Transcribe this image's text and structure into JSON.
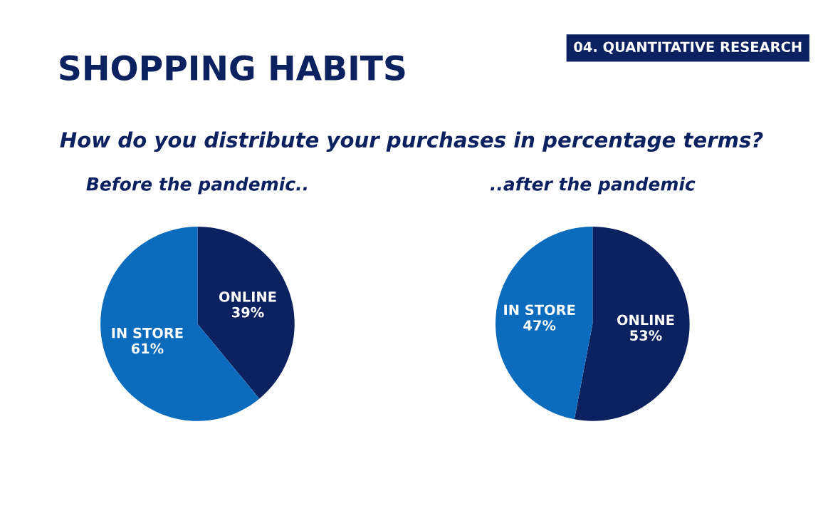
{
  "chart_data": [
    {
      "type": "pie",
      "title": "Before the pandemic..",
      "annotations": [
        "SHOPPING HABITS",
        "04. QUANTITATIVE RESEARCH",
        "How do you distribute your purchases in percentage terms?"
      ],
      "categories": [
        "ONLINE",
        "IN STORE"
      ],
      "values": [
        39,
        61
      ],
      "value_labels": [
        "39%",
        "61%"
      ],
      "colors": [
        "#0c2160",
        "#0b6bbd"
      ]
    },
    {
      "type": "pie",
      "title": "..after the pandemic",
      "categories": [
        "ONLINE",
        "IN STORE"
      ],
      "values": [
        53,
        47
      ],
      "value_labels": [
        "53%",
        "47%"
      ],
      "colors": [
        "#0c2160",
        "#0b6bbd"
      ]
    }
  ]
}
